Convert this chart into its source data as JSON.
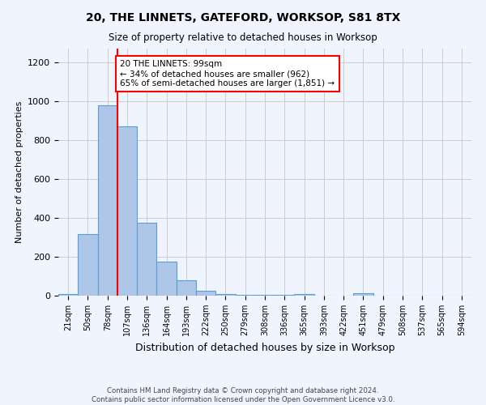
{
  "title": "20, THE LINNETS, GATEFORD, WORKSOP, S81 8TX",
  "subtitle": "Size of property relative to detached houses in Worksop",
  "xlabel": "Distribution of detached houses by size in Worksop",
  "ylabel": "Number of detached properties",
  "footer": "Contains HM Land Registry data © Crown copyright and database right 2024.\nContains public sector information licensed under the Open Government Licence v3.0.",
  "bin_labels": [
    "21sqm",
    "50sqm",
    "78sqm",
    "107sqm",
    "136sqm",
    "164sqm",
    "193sqm",
    "222sqm",
    "250sqm",
    "279sqm",
    "308sqm",
    "336sqm",
    "365sqm",
    "393sqm",
    "422sqm",
    "451sqm",
    "479sqm",
    "508sqm",
    "537sqm",
    "565sqm",
    "594sqm"
  ],
  "bar_values": [
    10,
    315,
    980,
    870,
    375,
    175,
    80,
    25,
    8,
    3,
    3,
    3,
    8,
    0,
    0,
    12,
    0,
    0,
    0,
    0,
    0
  ],
  "bar_color": "#aec6e8",
  "bar_edge_color": "#5a9fd4",
  "background_color": "#f0f4ff",
  "grid_color": "#cccccc",
  "vline_color": "red",
  "annotation_text": "20 THE LINNETS: 99sqm\n← 34% of detached houses are smaller (962)\n65% of semi-detached houses are larger (1,851) →",
  "annotation_box_color": "white",
  "annotation_box_edge_color": "red",
  "ylim": [
    0,
    1270
  ],
  "yticks": [
    0,
    200,
    400,
    600,
    800,
    1000,
    1200
  ]
}
